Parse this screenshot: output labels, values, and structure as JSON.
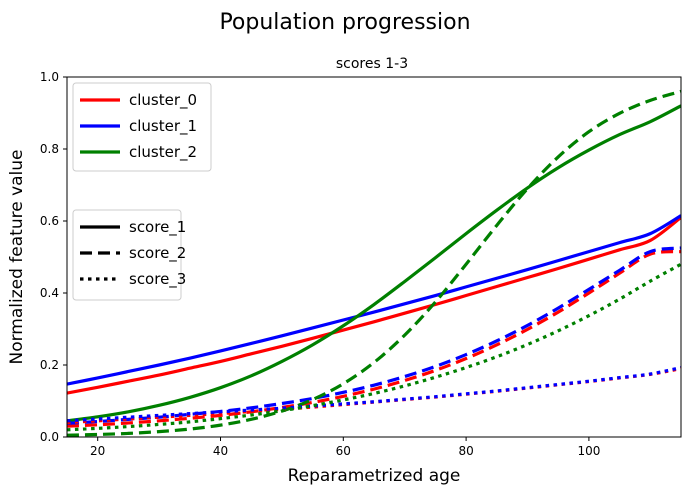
{
  "chart_data": {
    "type": "line",
    "title": "Population progression",
    "subtitle": "scores 1-3",
    "xlabel": "Reparametrized age",
    "ylabel": "Normalized feature value",
    "xlim": [
      15,
      115
    ],
    "ylim": [
      0.0,
      1.0
    ],
    "xticks": [
      20,
      40,
      60,
      80,
      100
    ],
    "xtick_labels": [
      "20",
      "40",
      "60",
      "80",
      "100"
    ],
    "yticks": [
      0.0,
      0.2,
      0.4,
      0.6,
      0.8,
      1.0
    ],
    "ytick_labels": [
      "0.0",
      "0.2",
      "0.4",
      "0.6",
      "0.8",
      "1.0"
    ],
    "grid": false,
    "legends": [
      {
        "placement": "upper-left",
        "entries": [
          {
            "label": "cluster_0",
            "color": "#ff0000",
            "style": "solid"
          },
          {
            "label": "cluster_1",
            "color": "#0000ff",
            "style": "solid"
          },
          {
            "label": "cluster_2",
            "color": "#008000",
            "style": "solid"
          }
        ]
      },
      {
        "placement": "center-left",
        "entries": [
          {
            "label": "score_1",
            "color": "#000000",
            "style": "solid"
          },
          {
            "label": "score_2",
            "color": "#000000",
            "style": "dashed"
          },
          {
            "label": "score_3",
            "color": "#000000",
            "style": "dotted"
          }
        ]
      }
    ],
    "x": [
      15,
      20,
      25,
      30,
      35,
      40,
      45,
      50,
      55,
      60,
      65,
      70,
      75,
      80,
      85,
      90,
      95,
      100,
      105,
      110,
      115
    ],
    "series": [
      {
        "cluster": "cluster_0",
        "score": "score_1",
        "color": "#ff0000",
        "style": "solid",
        "values": [
          0.122,
          0.138,
          0.155,
          0.172,
          0.191,
          0.21,
          0.231,
          0.252,
          0.274,
          0.297,
          0.32,
          0.344,
          0.368,
          0.393,
          0.418,
          0.443,
          0.468,
          0.494,
          0.52,
          0.546,
          0.61
        ]
      },
      {
        "cluster": "cluster_1",
        "score": "score_1",
        "color": "#0000ff",
        "style": "solid",
        "values": [
          0.147,
          0.164,
          0.182,
          0.2,
          0.219,
          0.239,
          0.26,
          0.281,
          0.303,
          0.325,
          0.347,
          0.37,
          0.393,
          0.417,
          0.441,
          0.465,
          0.49,
          0.515,
          0.54,
          0.565,
          0.615
        ]
      },
      {
        "cluster": "cluster_2",
        "score": "score_1",
        "color": "#008000",
        "style": "solid",
        "values": [
          0.045,
          0.056,
          0.07,
          0.088,
          0.11,
          0.137,
          0.17,
          0.21,
          0.256,
          0.309,
          0.368,
          0.432,
          0.498,
          0.565,
          0.63,
          0.692,
          0.748,
          0.797,
          0.84,
          0.876,
          0.92
        ]
      },
      {
        "cluster": "cluster_0",
        "score": "score_2",
        "color": "#ff0000",
        "style": "dashed",
        "values": [
          0.03,
          0.034,
          0.039,
          0.045,
          0.052,
          0.06,
          0.07,
          0.082,
          0.096,
          0.113,
          0.133,
          0.157,
          0.185,
          0.218,
          0.256,
          0.299,
          0.347,
          0.4,
          0.455,
          0.508,
          0.515
        ]
      },
      {
        "cluster": "cluster_1",
        "score": "score_2",
        "color": "#0000ff",
        "style": "dashed",
        "values": [
          0.038,
          0.043,
          0.049,
          0.055,
          0.063,
          0.071,
          0.081,
          0.093,
          0.107,
          0.124,
          0.144,
          0.168,
          0.196,
          0.229,
          0.267,
          0.31,
          0.358,
          0.41,
          0.463,
          0.515,
          0.525
        ]
      },
      {
        "cluster": "cluster_2",
        "score": "score_2",
        "color": "#008000",
        "style": "dashed",
        "values": [
          0.005,
          0.007,
          0.01,
          0.015,
          0.022,
          0.033,
          0.049,
          0.072,
          0.104,
          0.148,
          0.207,
          0.283,
          0.375,
          0.48,
          0.588,
          0.69,
          0.778,
          0.848,
          0.899,
          0.935,
          0.96
        ]
      },
      {
        "cluster": "cluster_0",
        "score": "score_3",
        "color": "#ff0000",
        "style": "dotted",
        "values": [
          0.04,
          0.045,
          0.05,
          0.055,
          0.06,
          0.065,
          0.071,
          0.077,
          0.083,
          0.09,
          0.097,
          0.104,
          0.111,
          0.119,
          0.127,
          0.136,
          0.145,
          0.154,
          0.164,
          0.174,
          0.19
        ]
      },
      {
        "cluster": "cluster_1",
        "score": "score_3",
        "color": "#0000ff",
        "style": "dotted",
        "values": [
          0.045,
          0.05,
          0.055,
          0.06,
          0.065,
          0.07,
          0.075,
          0.08,
          0.086,
          0.092,
          0.098,
          0.105,
          0.112,
          0.12,
          0.128,
          0.137,
          0.146,
          0.155,
          0.165,
          0.175,
          0.193
        ]
      },
      {
        "cluster": "cluster_2",
        "score": "score_3",
        "color": "#008000",
        "style": "dotted",
        "values": [
          0.02,
          0.024,
          0.029,
          0.035,
          0.042,
          0.051,
          0.061,
          0.073,
          0.087,
          0.103,
          0.121,
          0.142,
          0.166,
          0.193,
          0.223,
          0.257,
          0.295,
          0.337,
          0.383,
          0.433,
          0.48
        ]
      }
    ]
  }
}
